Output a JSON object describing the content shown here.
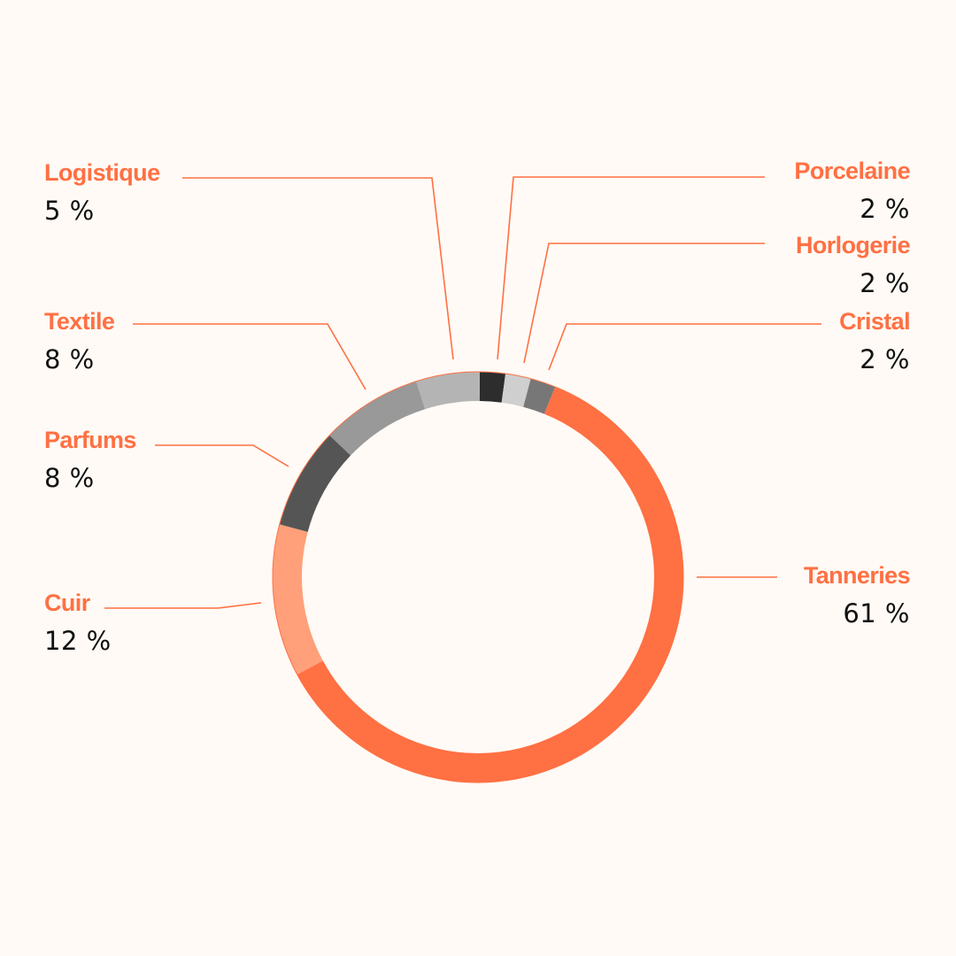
{
  "chart_data": {
    "type": "pie",
    "variant": "donut",
    "unit": "%",
    "segments": [
      {
        "key": "tanneries",
        "name": "Tanneries",
        "value": 61,
        "label": "61 %",
        "color": "#ff7043"
      },
      {
        "key": "cuir",
        "name": "Cuir",
        "value": 12,
        "label": "12 %",
        "color": "#ffa07a"
      },
      {
        "key": "parfums",
        "name": "Parfums",
        "value": 8,
        "label": "8 %",
        "color": "#555555"
      },
      {
        "key": "textile",
        "name": "Textile",
        "value": 8,
        "label": "8 %",
        "color": "#999999"
      },
      {
        "key": "logistique",
        "name": "Logistique",
        "value": 5,
        "label": "5 %",
        "color": "#b4b4b4"
      },
      {
        "key": "porcelaine",
        "name": "Porcelaine",
        "value": 2,
        "label": "2 %",
        "color": "#2d2d2d"
      },
      {
        "key": "horlogerie",
        "name": "Horlogerie",
        "value": 2,
        "label": "2 %",
        "color": "#cfcfcf"
      },
      {
        "key": "cristal",
        "name": "Cristal",
        "value": 2,
        "label": "2 %",
        "color": "#777777"
      }
    ]
  },
  "colors": {
    "accent": "#ff7043",
    "background": "#fffaf5",
    "value_text": "#111111"
  }
}
